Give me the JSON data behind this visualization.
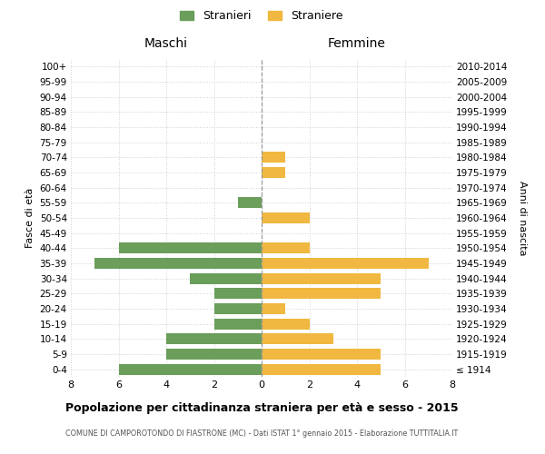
{
  "age_groups": [
    "100+",
    "95-99",
    "90-94",
    "85-89",
    "80-84",
    "75-79",
    "70-74",
    "65-69",
    "60-64",
    "55-59",
    "50-54",
    "45-49",
    "40-44",
    "35-39",
    "30-34",
    "25-29",
    "20-24",
    "15-19",
    "10-14",
    "5-9",
    "0-4"
  ],
  "birth_years": [
    "≤ 1914",
    "1915-1919",
    "1920-1924",
    "1925-1929",
    "1930-1934",
    "1935-1939",
    "1940-1944",
    "1945-1949",
    "1950-1954",
    "1955-1959",
    "1960-1964",
    "1965-1969",
    "1970-1974",
    "1975-1979",
    "1980-1984",
    "1985-1989",
    "1990-1994",
    "1995-1999",
    "2000-2004",
    "2005-2009",
    "2010-2014"
  ],
  "maschi": [
    0,
    0,
    0,
    0,
    0,
    0,
    0,
    0,
    0,
    1,
    0,
    0,
    6,
    7,
    3,
    2,
    2,
    2,
    4,
    4,
    6
  ],
  "femmine": [
    0,
    0,
    0,
    0,
    0,
    0,
    1,
    1,
    0,
    0,
    2,
    0,
    2,
    7,
    5,
    5,
    1,
    2,
    3,
    5,
    5
  ],
  "color_maschi": "#6a9e5a",
  "color_femmine": "#f0b840",
  "title": "Popolazione per cittadinanza straniera per età e sesso - 2015",
  "subtitle": "COMUNE DI CAMPOROTONDO DI FIASTRONE (MC) - Dati ISTAT 1° gennaio 2015 - Elaborazione TUTTITALIA.IT",
  "xlabel_left": "Maschi",
  "xlabel_right": "Femmine",
  "ylabel_left": "Fasce di età",
  "ylabel_right": "Anni di nascita",
  "legend_maschi": "Stranieri",
  "legend_femmine": "Straniere",
  "xlim": 8,
  "background_color": "#ffffff",
  "grid_color": "#d0d0d0"
}
